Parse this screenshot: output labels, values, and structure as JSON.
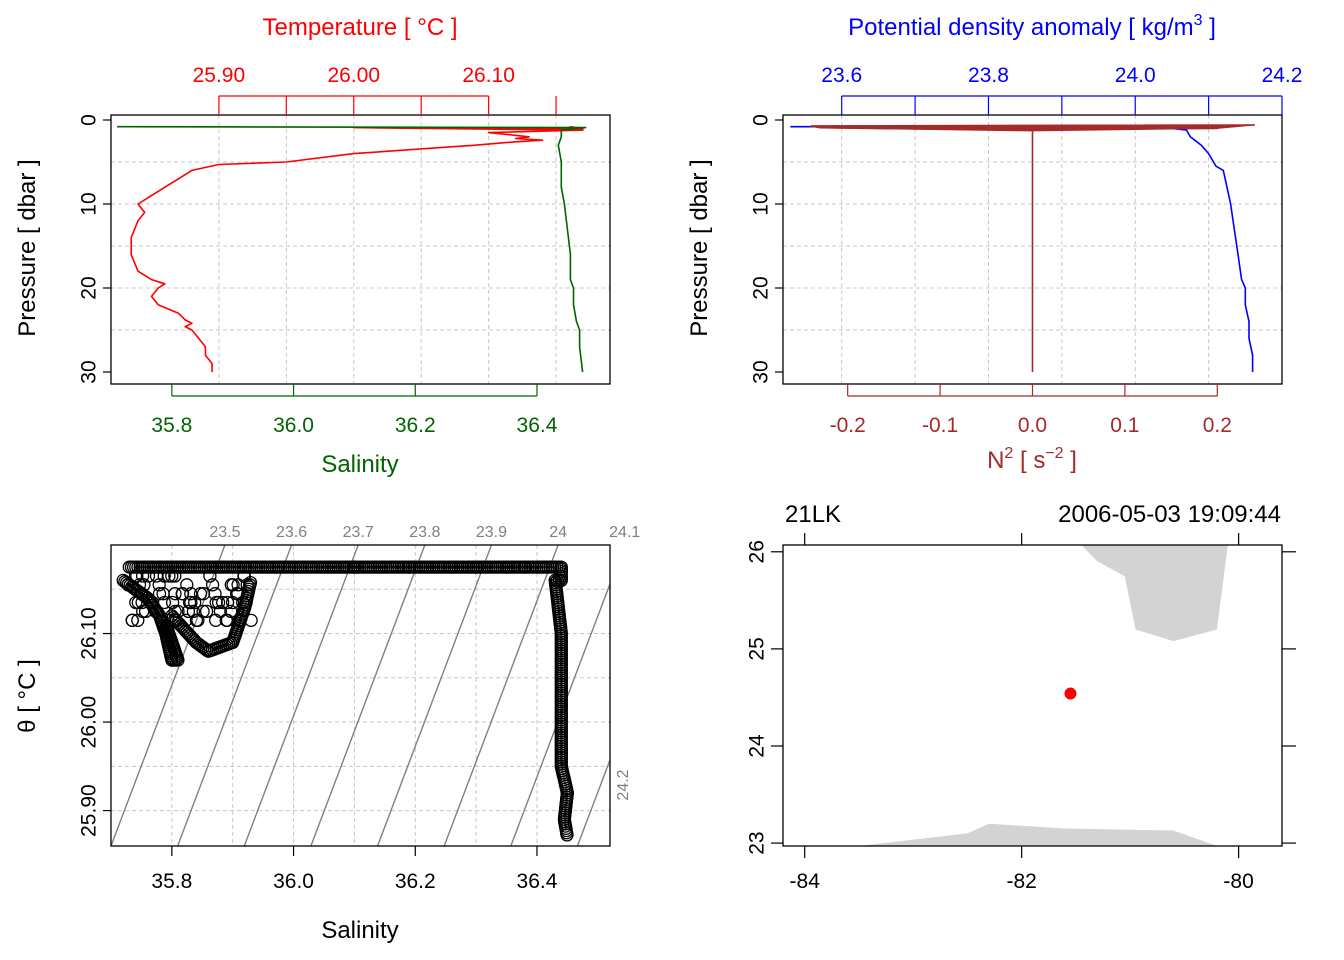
{
  "colors": {
    "temperature": "#ff0000",
    "salinity": "#006400",
    "density": "#0000ff",
    "n2": "#a52a2a",
    "iso": "#808080",
    "grid": "#c8c8c8",
    "coast": "#d3d3d3",
    "station": "#ff0000"
  },
  "chart_data": [
    {
      "id": "ts_profile",
      "type": "line",
      "ylabel": "Pressure [ dbar ]",
      "ylim": [
        30,
        0
      ],
      "yticks": [
        "0",
        "10",
        "20",
        "30"
      ],
      "top_axis": {
        "label": "Temperature [ °C ]",
        "ticks": [
          "25.90",
          "26.00",
          "26.10"
        ],
        "tick_values": [
          25.9,
          26.0,
          26.1
        ],
        "range": [
          25.82,
          26.19
        ]
      },
      "bottom_axis": {
        "label": "Salinity",
        "ticks": [
          "35.8",
          "36.0",
          "36.2",
          "36.4"
        ],
        "tick_values": [
          35.8,
          36.0,
          36.2,
          36.4
        ],
        "range": [
          35.7,
          36.52
        ]
      },
      "series": [
        {
          "name": "Temperature",
          "axis": "top",
          "points": [
            [
              26.16,
              0.8
            ],
            [
              26.17,
              1.0
            ],
            [
              26.0,
              0.9
            ],
            [
              26.17,
              1.2
            ],
            [
              26.1,
              1.5
            ],
            [
              26.13,
              2.0
            ],
            [
              26.12,
              2.2
            ],
            [
              26.14,
              2.4
            ],
            [
              26.12,
              2.6
            ],
            [
              26.09,
              3.0
            ],
            [
              26.0,
              4.0
            ],
            [
              25.95,
              5.0
            ],
            [
              25.9,
              5.3
            ],
            [
              25.88,
              6.0
            ],
            [
              25.87,
              7.0
            ],
            [
              25.86,
              8.0
            ],
            [
              25.85,
              9.0
            ],
            [
              25.84,
              10.0
            ],
            [
              25.845,
              11.0
            ],
            [
              25.84,
              12.0
            ],
            [
              25.835,
              14.0
            ],
            [
              25.835,
              16.0
            ],
            [
              25.84,
              18.0
            ],
            [
              25.85,
              19.0
            ],
            [
              25.86,
              19.5
            ],
            [
              25.855,
              20.0
            ],
            [
              25.85,
              21.0
            ],
            [
              25.855,
              22.0
            ],
            [
              25.87,
              23.0
            ],
            [
              25.875,
              23.8
            ],
            [
              25.88,
              24.2
            ],
            [
              25.875,
              24.6
            ],
            [
              25.88,
              25.0
            ],
            [
              25.885,
              26.0
            ],
            [
              25.89,
              27.0
            ],
            [
              25.89,
              28.0
            ],
            [
              25.895,
              29.0
            ],
            [
              25.895,
              30.0
            ]
          ]
        },
        {
          "name": "Salinity",
          "axis": "bottom",
          "points": [
            [
              35.71,
              0.8
            ],
            [
              36.48,
              0.9
            ],
            [
              36.44,
              1.2
            ],
            [
              36.44,
              2.0
            ],
            [
              36.435,
              3.0
            ],
            [
              36.44,
              5.0
            ],
            [
              36.44,
              8.0
            ],
            [
              36.445,
              10.0
            ],
            [
              36.45,
              13.0
            ],
            [
              36.455,
              16.0
            ],
            [
              36.455,
              19.0
            ],
            [
              36.46,
              20.0
            ],
            [
              36.46,
              22.0
            ],
            [
              36.465,
              24.0
            ],
            [
              36.47,
              25.0
            ],
            [
              36.47,
              27.0
            ],
            [
              36.475,
              30.0
            ]
          ]
        }
      ]
    },
    {
      "id": "density_n2",
      "type": "line",
      "ylabel": "Pressure [ dbar ]",
      "ylim": [
        30,
        0
      ],
      "yticks": [
        "0",
        "10",
        "20",
        "30"
      ],
      "top_axis": {
        "label": "Potential density anomaly [ kg/m",
        "label_sup": "3",
        "label_tail": " ]",
        "ticks": [
          "23.6",
          "23.8",
          "24.0",
          "24.2"
        ],
        "tick_values": [
          23.6,
          23.8,
          24.0,
          24.2
        ],
        "range": [
          23.52,
          24.2
        ]
      },
      "bottom_axis": {
        "label": "N",
        "label_sup": "2",
        "label_tail": " [ s",
        "label_sup2": "−2",
        "label_end": " ]",
        "ticks": [
          "-0.2",
          "-0.1",
          "0.0",
          "0.1",
          "0.2"
        ],
        "tick_values": [
          -0.2,
          -0.1,
          0.0,
          0.1,
          0.2
        ],
        "range": [
          -0.27,
          0.27
        ]
      },
      "series": [
        {
          "name": "Potential density anomaly",
          "axis": "top",
          "points": [
            [
              23.53,
              0.8
            ],
            [
              23.6,
              0.8
            ],
            [
              23.8,
              0.9
            ],
            [
              24.05,
              1.0
            ],
            [
              24.07,
              1.2
            ],
            [
              24.075,
              2.0
            ],
            [
              24.09,
              3.0
            ],
            [
              24.1,
              4.0
            ],
            [
              24.11,
              5.5
            ],
            [
              24.12,
              6.0
            ],
            [
              24.125,
              8.0
            ],
            [
              24.13,
              10.0
            ],
            [
              24.135,
              13.0
            ],
            [
              24.14,
              16.0
            ],
            [
              24.145,
              19.0
            ],
            [
              24.15,
              20.0
            ],
            [
              24.15,
              22.0
            ],
            [
              24.155,
              24.0
            ],
            [
              24.155,
              26.0
            ],
            [
              24.16,
              28.0
            ],
            [
              24.16,
              30.0
            ]
          ]
        },
        {
          "name": "N2",
          "axis": "bottom",
          "points": [
            [
              -0.24,
              0.7
            ],
            [
              0.24,
              0.6
            ],
            [
              0.0,
              0.9
            ],
            [
              0.2,
              1.0
            ],
            [
              0.0,
              1.1
            ],
            [
              -0.23,
              0.9
            ],
            [
              0.0,
              1.2
            ],
            [
              0.0,
              2.0
            ],
            [
              0.0,
              30.0
            ]
          ]
        }
      ]
    },
    {
      "id": "ts_diagram",
      "type": "scatter",
      "xlabel": "Salinity",
      "ylabel": "θ [ °C ]",
      "xticks": [
        "35.8",
        "36.0",
        "36.2",
        "36.4"
      ],
      "xtick_values": [
        35.8,
        36.0,
        36.2,
        36.4
      ],
      "yticks": [
        "25.90",
        "26.00",
        "26.10"
      ],
      "ytick_values": [
        25.9,
        26.0,
        26.1
      ],
      "xlim": [
        35.7,
        36.52
      ],
      "ylim": [
        25.86,
        26.2
      ],
      "isopycnals": [
        "23.5",
        "23.6",
        "23.7",
        "23.8",
        "23.9",
        "24",
        "24.1",
        "24.2"
      ],
      "isopycnal_values": [
        23.5,
        23.6,
        23.7,
        23.8,
        23.9,
        24.0,
        24.1,
        24.2
      ],
      "outliers": [
        [
          36.1,
          26.175
        ],
        [
          36.19,
          26.175
        ],
        [
          36.26,
          26.175
        ],
        [
          36.3,
          26.175
        ],
        [
          36.35,
          26.175
        ],
        [
          36.38,
          26.175
        ]
      ],
      "clusters": [
        [
          [
            35.73,
            26.175
          ],
          [
            35.95,
            26.175
          ],
          [
            36.08,
            26.175
          ],
          [
            36.4,
            26.175
          ],
          [
            36.44,
            26.175
          ],
          [
            36.44,
            26.16
          ],
          [
            36.43,
            26.16
          ],
          [
            36.44,
            26.1
          ],
          [
            36.44,
            26.05
          ],
          [
            36.44,
            26.0
          ],
          [
            36.44,
            25.95
          ],
          [
            36.45,
            25.92
          ],
          [
            36.445,
            25.89
          ],
          [
            36.45,
            25.87
          ]
        ],
        [
          [
            35.72,
            26.16
          ],
          [
            35.76,
            26.14
          ],
          [
            35.78,
            26.12
          ],
          [
            35.79,
            26.1
          ],
          [
            35.8,
            26.07
          ],
          [
            35.81,
            26.07
          ],
          [
            35.8,
            26.09
          ],
          [
            35.79,
            26.11
          ]
        ],
        [
          [
            35.8,
            26.12
          ],
          [
            35.84,
            26.09
          ],
          [
            35.86,
            26.08
          ],
          [
            35.9,
            26.09
          ],
          [
            35.92,
            26.13
          ],
          [
            35.93,
            26.16
          ]
        ]
      ]
    },
    {
      "id": "station_map",
      "type": "map",
      "station": "21LK",
      "datetime": "2006-05-03 19:09:44",
      "xticks": [
        "-84",
        "-82",
        "-80"
      ],
      "xtick_values": [
        -84,
        -82,
        -80
      ],
      "yticks": [
        "23",
        "24",
        "25",
        "26"
      ],
      "ytick_values": [
        23,
        24,
        25,
        26
      ],
      "xlim": [
        -84.2,
        -79.6
      ],
      "ylim": [
        22.97,
        26.07
      ],
      "station_lon": -81.55,
      "station_lat": 24.54,
      "land": [
        [
          [
            -81.45,
            26.07
          ],
          [
            -81.3,
            25.9
          ],
          [
            -81.05,
            25.75
          ],
          [
            -80.95,
            25.2
          ],
          [
            -80.6,
            25.08
          ],
          [
            -80.2,
            25.2
          ],
          [
            -80.1,
            26.07
          ]
        ],
        [
          [
            -83.5,
            22.97
          ],
          [
            -82.5,
            23.1
          ],
          [
            -82.3,
            23.2
          ],
          [
            -81.6,
            23.15
          ],
          [
            -80.6,
            23.13
          ],
          [
            -80.2,
            22.97
          ]
        ]
      ]
    }
  ]
}
